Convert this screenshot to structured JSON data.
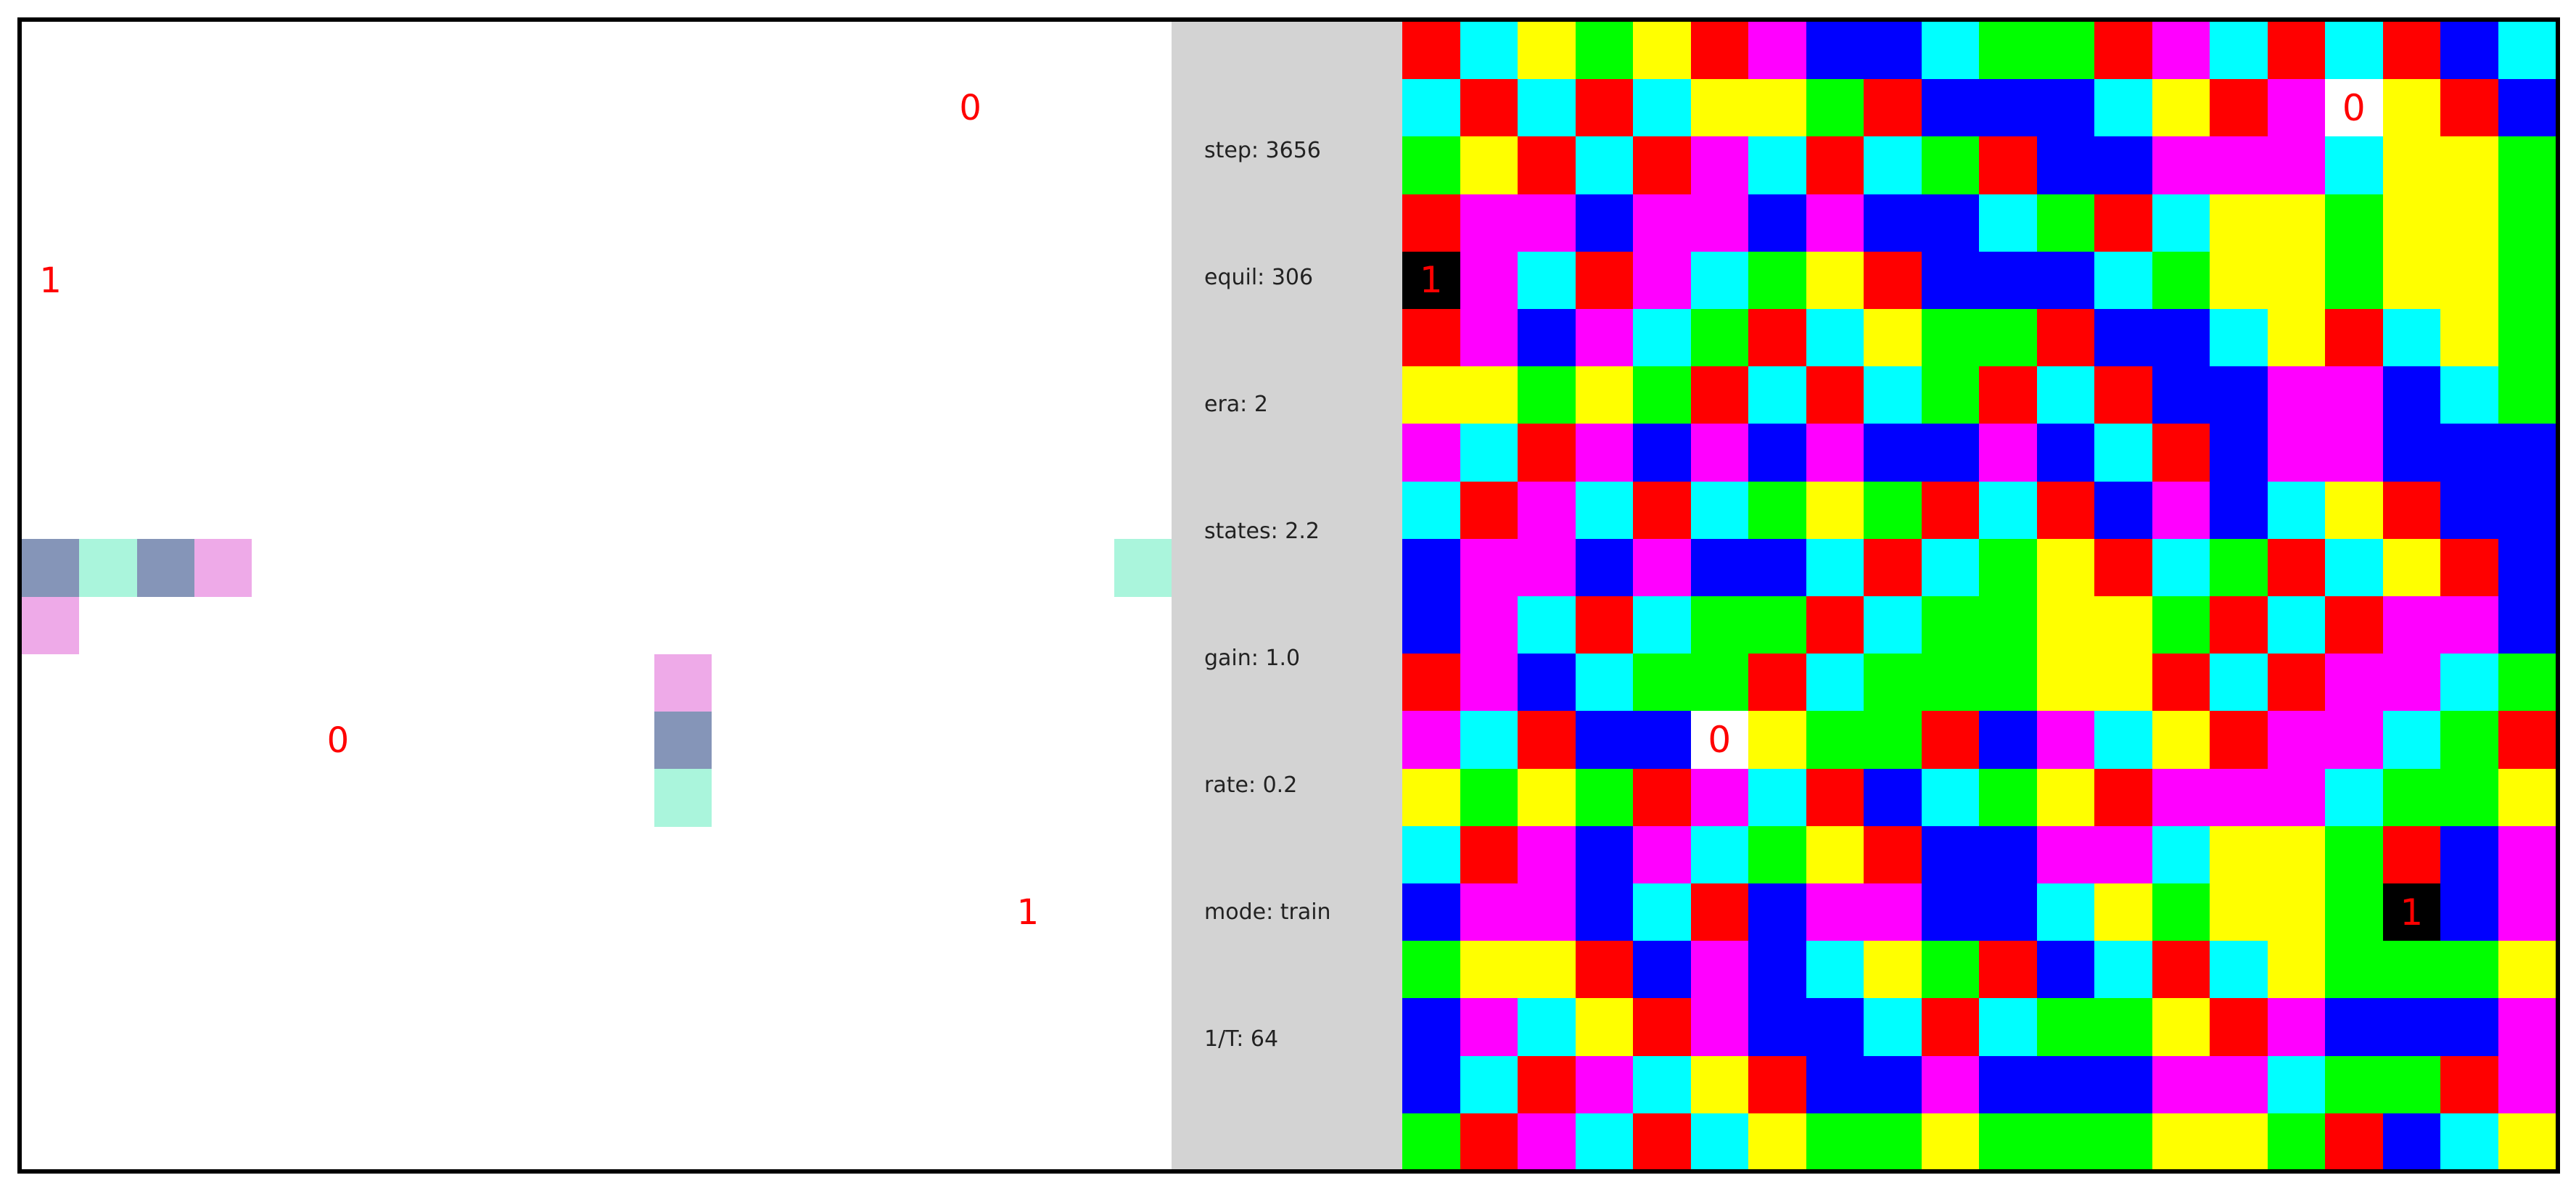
{
  "colors": {
    "R": "#ff0000",
    "C": "#00ffff",
    "Y": "#ffff00",
    "G": "#00ff00",
    "M": "#ff00ff",
    "B": "#0000ff",
    "W": "#ffffff",
    "K": "#000000",
    "slate": "#8595b8",
    "mint": "#aaf5dc",
    "pink": "#eeaae8",
    "panel": "#d3d3d3",
    "border": "#000000",
    "marker": "#ff0000"
  },
  "world": {
    "tiles": [
      {
        "row": 9,
        "col": 0,
        "color": "slate"
      },
      {
        "row": 9,
        "col": 1,
        "color": "mint"
      },
      {
        "row": 9,
        "col": 2,
        "color": "slate"
      },
      {
        "row": 9,
        "col": 3,
        "color": "pink"
      },
      {
        "row": 10,
        "col": 0,
        "color": "pink"
      },
      {
        "row": 9,
        "col": 19,
        "color": "mint"
      },
      {
        "row": 11,
        "col": 11,
        "color": "pink"
      },
      {
        "row": 12,
        "col": 11,
        "color": "slate"
      },
      {
        "row": 13,
        "col": 11,
        "color": "mint"
      }
    ],
    "markers": [
      {
        "label": "0",
        "row": 1,
        "col": 16
      },
      {
        "label": "1",
        "row": 4,
        "col": 0
      },
      {
        "label": "0",
        "row": 12,
        "col": 5
      },
      {
        "label": "1",
        "row": 15,
        "col": 17
      }
    ]
  },
  "stats": [
    "step: 3656",
    "equil: 306",
    "era: 2",
    "states: 2.2",
    "gain: 1.0",
    "rate: 0.2",
    "mode: train",
    "1/T: 64"
  ],
  "grid": {
    "rows": [
      "RCYGYRMBBCGGRMCRCRBC",
      "CRCRCYYGRBBBCYRMWYRB",
      "GYRCRMCRCGRBBMMMCYYG",
      "RMMBMMBMBBCGRCYYGYYG",
      "KMCRMCGYRBBBCGYYGYYG",
      "RMBMCGRCYGGRBBCYRCYG",
      "YYGYGRCRCGRCRBBMMBCG",
      "MCRMBMBMBBMBCRBMMBBB",
      "CRMCRCGYGRCRBMBCYRBB",
      "BMMBMBBCRCGYRCGRCYRB",
      "BMCRCGGRCGGYYGRCRMMB",
      "RMBCGGRCGGGYYRCRMMCG",
      "MCRBBWYGGRBMCYRMMCGR",
      "YGYGRMCRBCGYRMMMCGGY",
      "CRMBMCGYRBBMMCYYGRBM",
      "BMMBCRBMMBBCYGYYGKBM",
      "GYYRBMBCYGRBCRCYGGGY",
      "BMCYRMBBCRCGGYRMBBBM",
      "BCRMCYRBBMBBBMMCGGRM",
      "GRMCRCYGGYGGGYYGRBCY"
    ],
    "labels": [
      {
        "row": 1,
        "col": 16,
        "text": "0"
      },
      {
        "row": 4,
        "col": 0,
        "text": "1"
      },
      {
        "row": 12,
        "col": 5,
        "text": "0"
      },
      {
        "row": 15,
        "col": 17,
        "text": "1"
      }
    ]
  }
}
